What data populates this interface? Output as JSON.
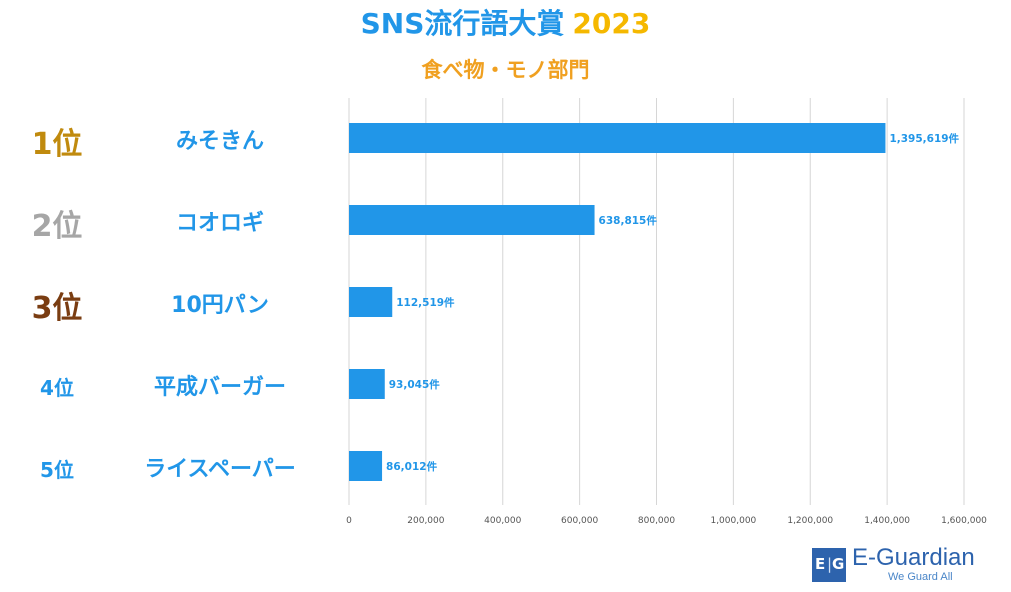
{
  "header": {
    "title": "SNS流行語大賞",
    "year": "2023",
    "subtitle": "食べ物・モノ部門"
  },
  "colors": {
    "bar": "#2196e8",
    "label": "#2196e8",
    "rank1": "#c08a0e",
    "rank2": "#a6a6a6",
    "rank3": "#7a3d12",
    "rank_other": "#2196e8",
    "grid": "#d6d6d6",
    "tick": "#555555"
  },
  "chart_data": {
    "type": "bar",
    "orientation": "horizontal",
    "title": "SNS流行語大賞 2023 食べ物・モノ部門",
    "categories": [
      "みそきん",
      "コオロギ",
      "10円パン",
      "平成バーガー",
      "ライスペーパー"
    ],
    "ranks": [
      "1位",
      "2位",
      "3位",
      "4位",
      "5位"
    ],
    "values": [
      1395619,
      638815,
      112519,
      93045,
      86012
    ],
    "value_labels": [
      "1,395,619件",
      "638,815件",
      "112,519件",
      "93,045件",
      "86,012件"
    ],
    "xlim": [
      0,
      1600000
    ],
    "xticks": [
      0,
      200000,
      400000,
      600000,
      800000,
      1000000,
      1200000,
      1400000,
      1600000
    ],
    "xtick_labels": [
      "0",
      "200,000",
      "400,000",
      "600,000",
      "800,000",
      "1,000,000",
      "1,200,000",
      "1,400,000",
      "1,600,000"
    ],
    "grid": true
  },
  "logo": {
    "mark": "E|G",
    "name": "E-Guardian",
    "tagline": "We Guard All"
  }
}
